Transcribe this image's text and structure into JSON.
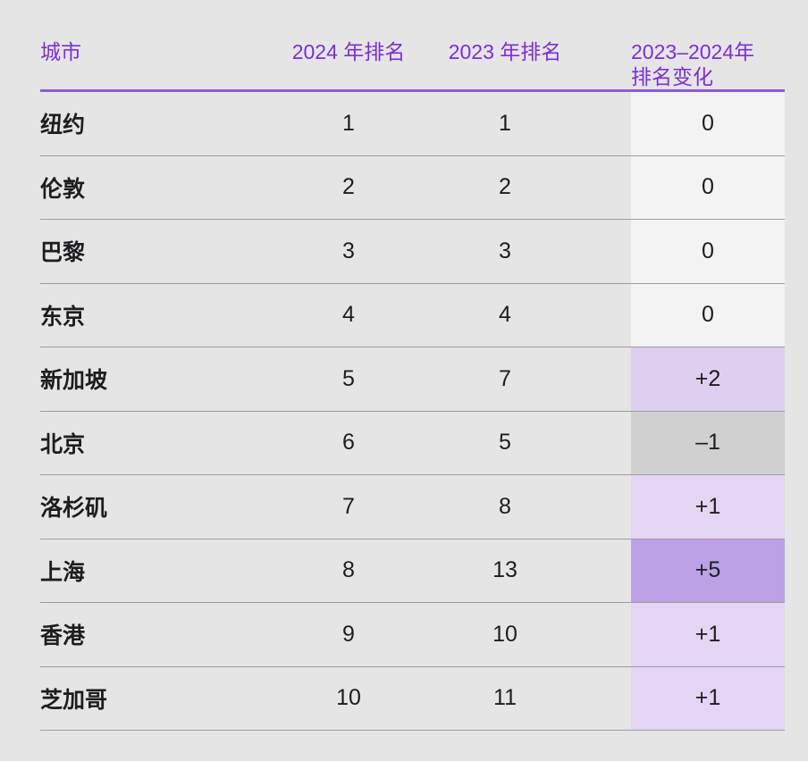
{
  "colors": {
    "page_background": "#e6e5e6",
    "header_text_purple": "#7b2fd6",
    "header_underline_purple": "#8b5ce1",
    "row_divider_gray": "#9c9ca0",
    "body_text": "#1d1d1f",
    "change_zero_bg": "#f4f3f4",
    "change_down_bg": "#d1d0d1",
    "change_up_small_bg": "#e3d5f3",
    "change_up_medium_bg": "#decff1",
    "change_up_large_bg": "#bca1e6"
  },
  "table": {
    "headers": {
      "city": "城市",
      "rank_2024": "2024 年排名",
      "rank_2023": "2023 年排名",
      "change_line1": "2023–2024年",
      "change_line2": "排名变化"
    },
    "rows": [
      {
        "city": "纽约",
        "rank_2024": "1",
        "rank_2023": "1",
        "change": "0",
        "change_bg": "#f4f3f4"
      },
      {
        "city": "伦敦",
        "rank_2024": "2",
        "rank_2023": "2",
        "change": "0",
        "change_bg": "#f4f3f4"
      },
      {
        "city": "巴黎",
        "rank_2024": "3",
        "rank_2023": "3",
        "change": "0",
        "change_bg": "#f4f3f4"
      },
      {
        "city": "东京",
        "rank_2024": "4",
        "rank_2023": "4",
        "change": "0",
        "change_bg": "#f4f3f4"
      },
      {
        "city": "新加坡",
        "rank_2024": "5",
        "rank_2023": "7",
        "change": "+2",
        "change_bg": "#decff1"
      },
      {
        "city": "北京",
        "rank_2024": "6",
        "rank_2023": "5",
        "change": "–1",
        "change_bg": "#d1d0d1"
      },
      {
        "city": "洛杉矶",
        "rank_2024": "7",
        "rank_2023": "8",
        "change": "+1",
        "change_bg": "#e3d5f3"
      },
      {
        "city": "上海",
        "rank_2024": "8",
        "rank_2023": "13",
        "change": "+5",
        "change_bg": "#bca1e6"
      },
      {
        "city": "香港",
        "rank_2024": "9",
        "rank_2023": "10",
        "change": "+1",
        "change_bg": "#e3d5f3"
      },
      {
        "city": "芝加哥",
        "rank_2024": "10",
        "rank_2023": "11",
        "change": "+1",
        "change_bg": "#e3d5f3"
      }
    ]
  },
  "chart_data": {
    "type": "table",
    "title": "",
    "columns": [
      "城市",
      "2024 年排名",
      "2023 年排名",
      "2023–2024年排名变化"
    ],
    "rows": [
      [
        "纽约",
        1,
        1,
        0
      ],
      [
        "伦敦",
        2,
        2,
        0
      ],
      [
        "巴黎",
        3,
        3,
        0
      ],
      [
        "东京",
        4,
        4,
        0
      ],
      [
        "新加坡",
        5,
        7,
        2
      ],
      [
        "北京",
        6,
        5,
        -1
      ],
      [
        "洛杉矶",
        7,
        8,
        1
      ],
      [
        "上海",
        8,
        13,
        5
      ],
      [
        "香港",
        9,
        10,
        1
      ],
      [
        "芝加哥",
        10,
        11,
        1
      ]
    ],
    "notes": "change column cell shading encodes magnitude: 0=near-white, negative=gray, +1/+2=light purple, +5=dark purple"
  }
}
